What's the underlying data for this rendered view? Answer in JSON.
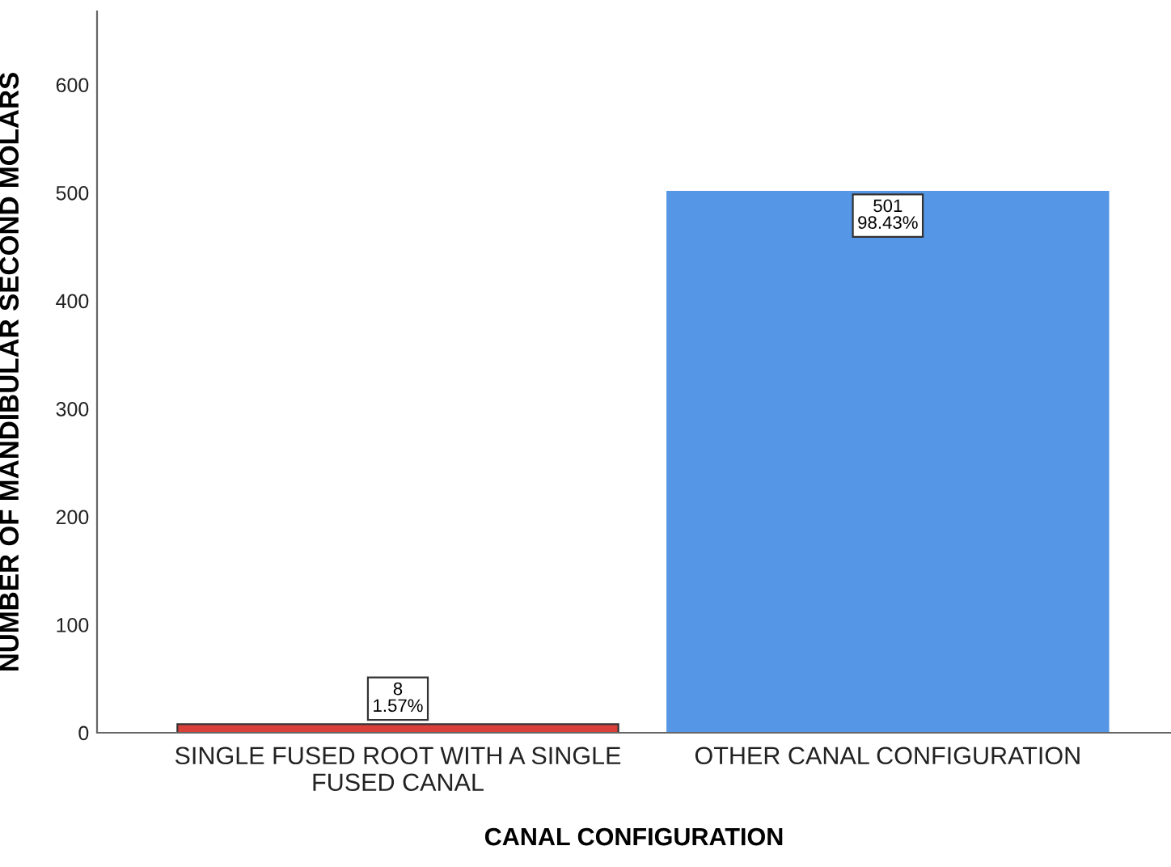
{
  "chart_data": {
    "type": "bar",
    "xlabel": "CANAL CONFIGURATION",
    "ylabel": "NUMBER OF MANDIBULAR SECOND MOLARS",
    "categories": [
      "SINGLE FUSED ROOT WITH A SINGLE\nFUSED CANAL",
      "OTHER CANAL CONFIGURATION"
    ],
    "values": [
      8,
      501
    ],
    "colors": [
      "#d9403a",
      "#5596e6"
    ],
    "value_labels": [
      "8\n1.57%",
      "501\n98.43%"
    ],
    "ylim": [
      0,
      668
    ],
    "yticks": [
      0,
      100,
      200,
      300,
      400,
      500,
      600
    ],
    "grid": false
  }
}
